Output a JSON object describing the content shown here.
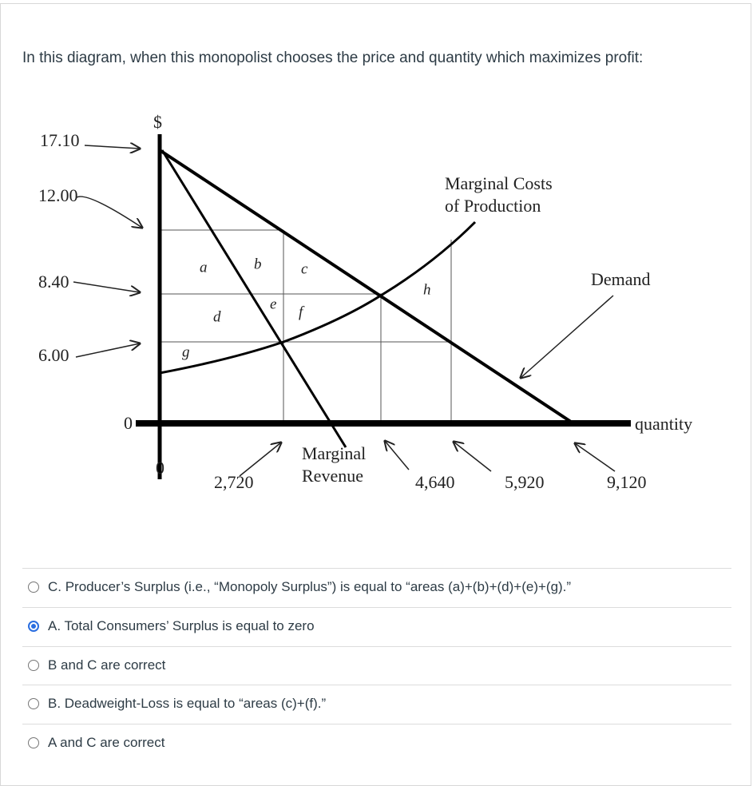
{
  "question": "In this diagram, when this monopolist chooses the price and quantity which maximizes profit:",
  "diagram": {
    "currency": "$",
    "price_labels": [
      "17.10",
      "12.00",
      "8.40",
      "6.00"
    ],
    "price_origin": "0",
    "quantity_origin": "0",
    "quantity_labels": [
      "2,720",
      "4,640",
      "5,920",
      "9,120"
    ],
    "axis_label": "quantity",
    "marginal_costs": [
      "Marginal Costs",
      "of Production"
    ],
    "marginal_revenue": [
      "Marginal",
      "Revenue"
    ],
    "demand": "Demand",
    "areas": [
      "a",
      "b",
      "c",
      "d",
      "e",
      "f",
      "g",
      "h"
    ]
  },
  "options": [
    {
      "text": "C. Producer’s Surplus (i.e., “Monopoly Surplus”) is equal to “areas (a)+(b)+(d)+(e)+(g).”",
      "selected": false
    },
    {
      "text": "A. Total Consumers’ Surplus is equal to zero",
      "selected": true
    },
    {
      "text": "B and C are correct",
      "selected": false
    },
    {
      "text": "B. Deadweight-Loss is equal to “areas (c)+(f).”",
      "selected": false
    },
    {
      "text": "A and C are correct",
      "selected": false
    }
  ]
}
